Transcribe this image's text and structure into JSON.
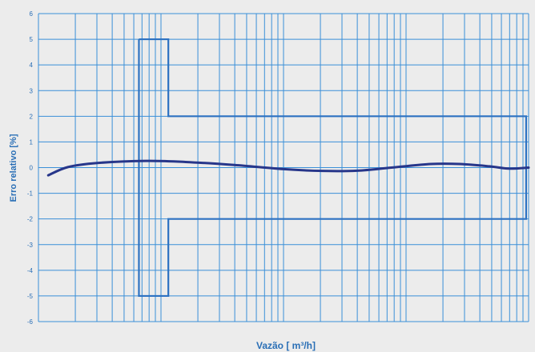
{
  "chart_data": {
    "type": "line",
    "title": "",
    "xlabel": "Vazão [ m³/h]",
    "ylabel": "Erro relativo [%]",
    "x_scale": "log",
    "x_ticks_labeled": false,
    "grid": true,
    "ylim": [
      -6,
      6
    ],
    "yticks": [
      "6",
      "5",
      "4",
      "3",
      "2",
      "1",
      "0",
      "-1",
      "-2",
      "-3",
      "-4",
      "-5",
      "-6"
    ],
    "colors": {
      "grid": "#3a8fd8",
      "tolerance": "#2d72c2",
      "curve": "#27368a",
      "text": "#2a6fb6",
      "background": "#ececec"
    },
    "series": [
      {
        "values": [
          [
            0.02,
            -0.3
          ],
          [
            0.06,
            0.02
          ],
          [
            0.12,
            0.18
          ],
          [
            0.22,
            0.26
          ],
          [
            0.3,
            0.22
          ],
          [
            0.4,
            0.1
          ],
          [
            0.5,
            -0.06
          ],
          [
            0.58,
            -0.13
          ],
          [
            0.65,
            -0.12
          ],
          [
            0.72,
            0.0
          ],
          [
            0.8,
            0.14
          ],
          [
            0.86,
            0.14
          ],
          [
            0.92,
            0.05
          ],
          [
            0.96,
            -0.04
          ],
          [
            1.0,
            0.0
          ]
        ]
      },
      {
        "values": [
          [
            0.205,
            5
          ],
          [
            0.265,
            5
          ],
          [
            0.265,
            2
          ],
          [
            0.995,
            2
          ],
          [
            0.995,
            -2
          ],
          [
            0.265,
            -2
          ],
          [
            0.265,
            -5
          ],
          [
            0.205,
            -5
          ],
          [
            0.205,
            5
          ]
        ]
      }
    ]
  }
}
